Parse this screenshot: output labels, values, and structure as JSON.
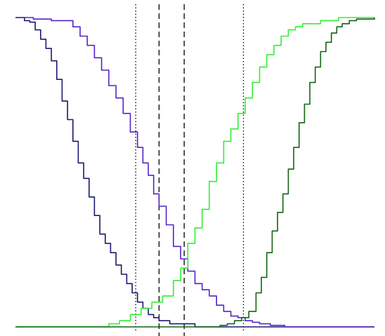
{
  "chart_data": {
    "type": "line",
    "title": "",
    "xlabel": "",
    "ylabel": "",
    "xlim": [
      0,
      100
    ],
    "ylim": [
      0,
      1
    ],
    "grid": false,
    "legend": "none",
    "series": [
      {
        "color": "#1a1a6e",
        "x": [
          0,
          2.5,
          4,
          5.5,
          7,
          8.5,
          10,
          11.5,
          13,
          14.5,
          16,
          17.5,
          19,
          20.5,
          22,
          23.5,
          25,
          26.5,
          28,
          29.5,
          31,
          32.5,
          34,
          35.5,
          37,
          38.5,
          40,
          43,
          50,
          100
        ],
        "y": [
          1.0,
          0.99,
          0.985,
          0.96,
          0.93,
          0.9,
          0.86,
          0.8,
          0.73,
          0.67,
          0.6,
          0.53,
          0.48,
          0.42,
          0.36,
          0.3,
          0.27,
          0.24,
          0.2,
          0.17,
          0.14,
          0.11,
          0.08,
          0.06,
          0.04,
          0.03,
          0.02,
          0.01,
          0.0,
          0.0
        ]
      },
      {
        "color": "#5522cc",
        "x": [
          0,
          5,
          10,
          16,
          18,
          20,
          22,
          24,
          26,
          28,
          30,
          32,
          34,
          35.5,
          37,
          38.5,
          40,
          42,
          44,
          46,
          48,
          50,
          52,
          54,
          56,
          58,
          60,
          62,
          64,
          66,
          68,
          71,
          75,
          100
        ],
        "y": [
          1.0,
          0.995,
          0.99,
          0.97,
          0.94,
          0.91,
          0.87,
          0.83,
          0.78,
          0.74,
          0.69,
          0.63,
          0.58,
          0.53,
          0.49,
          0.43,
          0.39,
          0.33,
          0.26,
          0.22,
          0.18,
          0.14,
          0.12,
          0.1,
          0.07,
          0.05,
          0.035,
          0.03,
          0.02,
          0.015,
          0.01,
          0.005,
          0.0,
          0.0
        ]
      },
      {
        "color": "#33ee33",
        "x": [
          0,
          23,
          26,
          29,
          32,
          35,
          38,
          41,
          44,
          46,
          48,
          50,
          52,
          54,
          56,
          58,
          60,
          62,
          64,
          66,
          68,
          70,
          72,
          74,
          76,
          78,
          80,
          85,
          90,
          100
        ],
        "y": [
          0.0,
          0.0,
          0.01,
          0.02,
          0.04,
          0.06,
          0.08,
          0.1,
          0.15,
          0.19,
          0.27,
          0.32,
          0.38,
          0.47,
          0.53,
          0.6,
          0.64,
          0.69,
          0.74,
          0.79,
          0.84,
          0.88,
          0.91,
          0.94,
          0.96,
          0.97,
          0.98,
          0.99,
          1.0,
          1.0
        ]
      },
      {
        "color": "#116611",
        "x": [
          0,
          55,
          57,
          59,
          61,
          63,
          65,
          67,
          68.5,
          70,
          71.5,
          73,
          74.5,
          76,
          77.5,
          79,
          80.5,
          82,
          83.5,
          85,
          86.5,
          88,
          89.5,
          91,
          93,
          95,
          100
        ],
        "y": [
          0.0,
          0.0,
          0.005,
          0.01,
          0.02,
          0.03,
          0.05,
          0.11,
          0.16,
          0.24,
          0.31,
          0.37,
          0.43,
          0.51,
          0.58,
          0.66,
          0.72,
          0.79,
          0.84,
          0.89,
          0.92,
          0.95,
          0.97,
          0.98,
          0.99,
          0.995,
          1.0
        ]
      }
    ],
    "reference_lines": [
      {
        "x": 33.5,
        "style": "dotted"
      },
      {
        "x": 40.0,
        "style": "dashed"
      },
      {
        "x": 47.0,
        "style": "dashed"
      },
      {
        "x": 63.5,
        "style": "dotted"
      }
    ]
  }
}
